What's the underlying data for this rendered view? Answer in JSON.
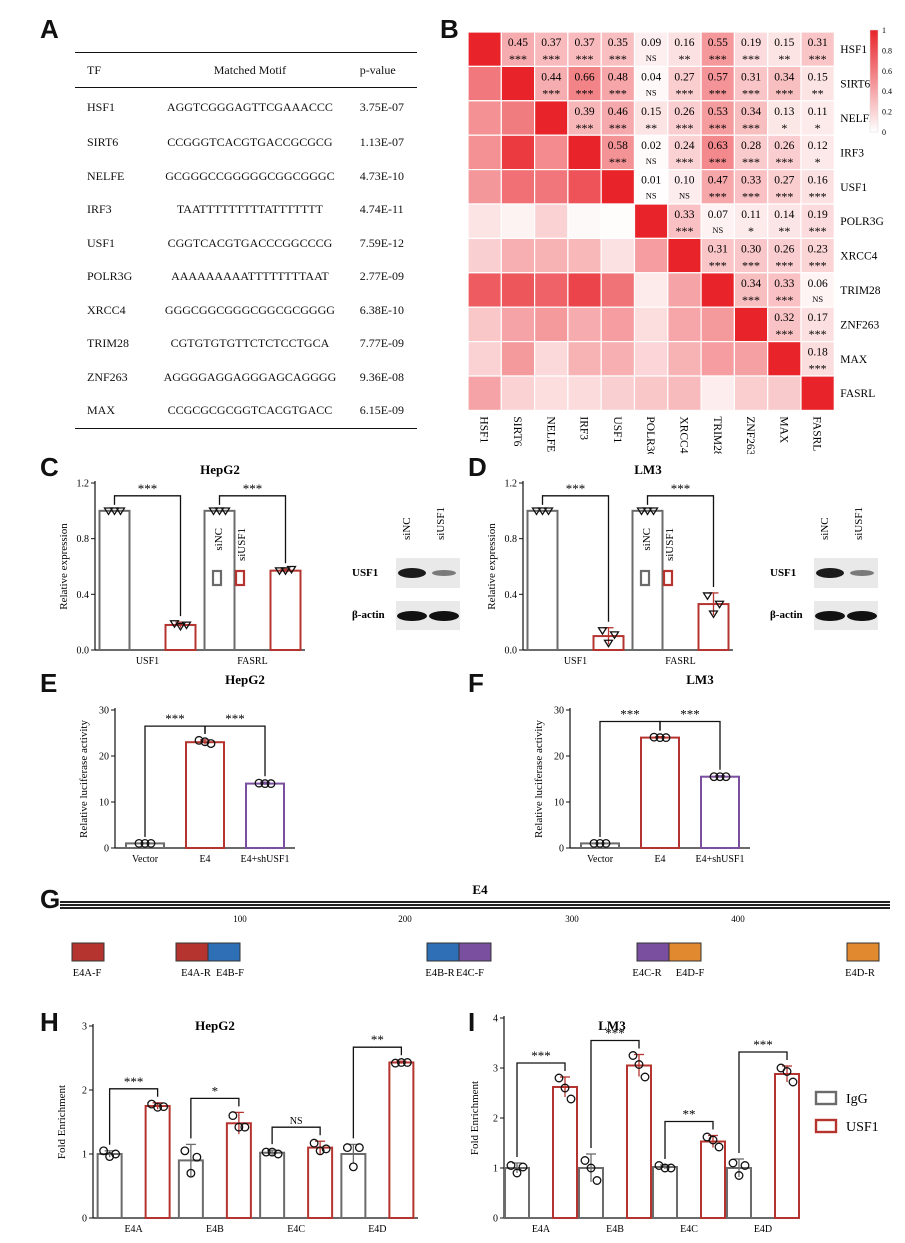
{
  "panel_labels": [
    "A",
    "B",
    "C",
    "D",
    "E",
    "F",
    "G",
    "H",
    "I"
  ],
  "motif_table": {
    "headers": [
      "TF",
      "Matched Motif",
      "p-value"
    ],
    "rows": [
      [
        "HSF1",
        "AGGTCGGGAGTTCGAAACCC",
        "3.75E-07"
      ],
      [
        "SIRT6",
        "CCGGGTCACGTGACCGCGCG",
        "1.13E-07"
      ],
      [
        "NELFE",
        "GCGGGCCGGGGGCGGCGGGC",
        "4.73E-10"
      ],
      [
        "IRF3",
        "TAATTTTTTTTTATTTTTTT",
        "4.74E-11"
      ],
      [
        "USF1",
        "CGGTCACGTGACCCGGCCCG",
        "7.59E-12"
      ],
      [
        "POLR3G",
        "AAAAAAAAATTTTTTTTAAT",
        "2.77E-09"
      ],
      [
        "XRCC4",
        "GGGCGGCGGGCGGCGCGGGG",
        "6.38E-10"
      ],
      [
        "TRIM28",
        "CGTGTGTGTTCTCTCCTGCA",
        "7.77E-09"
      ],
      [
        "ZNF263",
        "AGGGGAGGAGGGAGCAGGGG",
        "9.36E-08"
      ],
      [
        "MAX",
        "CCGCGCGCGGTCACGTGACC",
        "6.15E-09"
      ]
    ]
  },
  "heatmap": {
    "labels": [
      "HSF1",
      "SIRT6",
      "NELFE",
      "IRF3",
      "USF1",
      "POLR3G",
      "XRCC4",
      "TRIM28",
      "ZNF263",
      "MAX",
      "FASRL"
    ],
    "colorbar_ticks": [
      "1",
      "0.8",
      "0.6",
      "0.4",
      "0.2",
      "0"
    ],
    "colors": {
      "high": "#e8232a",
      "low": "#ffffff"
    },
    "upper": [
      [
        null,
        "0.45",
        "0.37",
        "0.37",
        "0.35",
        "0.09",
        "0.16",
        "0.55",
        "0.19",
        "0.15",
        "0.31"
      ],
      [
        null,
        null,
        "0.44",
        "0.66",
        "0.48",
        "0.04",
        "0.27",
        "0.57",
        "0.31",
        "0.34",
        "0.15"
      ],
      [
        null,
        null,
        null,
        "0.39",
        "0.46",
        "0.15",
        "0.26",
        "0.53",
        "0.34",
        "0.13",
        "0.11"
      ],
      [
        null,
        null,
        null,
        null,
        "0.58",
        "0.02",
        "0.24",
        "0.63",
        "0.28",
        "0.26",
        "0.12"
      ],
      [
        null,
        null,
        null,
        null,
        null,
        "0.01",
        "0.10",
        "0.47",
        "0.33",
        "0.27",
        "0.16"
      ],
      [
        null,
        null,
        null,
        null,
        null,
        null,
        "0.33",
        "0.07",
        "0.11",
        "0.14",
        "0.19"
      ],
      [
        null,
        null,
        null,
        null,
        null,
        null,
        null,
        "0.31",
        "0.30",
        "0.26",
        "0.23"
      ],
      [
        null,
        null,
        null,
        null,
        null,
        null,
        null,
        null,
        "0.34",
        "0.33",
        "0.06"
      ],
      [
        null,
        null,
        null,
        null,
        null,
        null,
        null,
        null,
        null,
        "0.32",
        "0.17"
      ],
      [
        null,
        null,
        null,
        null,
        null,
        null,
        null,
        null,
        null,
        null,
        "0.18"
      ]
    ],
    "sig": [
      [
        null,
        "***",
        "***",
        "***",
        "***",
        "NS",
        "**",
        "***",
        "***",
        "**",
        "***"
      ],
      [
        null,
        null,
        "***",
        "***",
        "***",
        "NS",
        "***",
        "***",
        "***",
        "***",
        "**"
      ],
      [
        null,
        null,
        null,
        "***",
        "***",
        "**",
        "***",
        "***",
        "***",
        "*",
        "*"
      ],
      [
        null,
        null,
        null,
        null,
        "***",
        "NS",
        "***",
        "***",
        "***",
        "***",
        "*"
      ],
      [
        null,
        null,
        null,
        null,
        null,
        "NS",
        "NS",
        "***",
        "***",
        "***",
        "***"
      ],
      [
        null,
        null,
        null,
        null,
        null,
        null,
        "***",
        "NS",
        "*",
        "**",
        "***"
      ],
      [
        null,
        null,
        null,
        null,
        null,
        null,
        null,
        "***",
        "***",
        "***",
        "***"
      ],
      [
        null,
        null,
        null,
        null,
        null,
        null,
        null,
        null,
        "***",
        "***",
        "NS"
      ],
      [
        null,
        null,
        null,
        null,
        null,
        null,
        null,
        null,
        null,
        "***",
        "***"
      ],
      [
        null,
        null,
        null,
        null,
        null,
        null,
        null,
        null,
        null,
        null,
        "***"
      ]
    ]
  },
  "chart_data": [
    {
      "id": "C",
      "type": "bar",
      "title": "HepG2",
      "ylabel": "Relative expression",
      "ylim": [
        0,
        1.2
      ],
      "yticks": [
        "0.0",
        "0.4",
        "0.8",
        "1.2"
      ],
      "categories": [
        "USF1",
        "FASRL"
      ],
      "series": [
        {
          "name": "siNC",
          "color": "#6b6b6b",
          "values": [
            1.0,
            1.0
          ],
          "sd": [
            0,
            0
          ],
          "points": [
            [
              1.0,
              1.0,
              1.0
            ],
            [
              1.0,
              1.0,
              1.0
            ]
          ]
        },
        {
          "name": "siUSF1",
          "color": "#b5342f",
          "values": [
            0.18,
            0.57
          ],
          "sd": [
            0.02,
            0.01
          ],
          "points": [
            [
              0.19,
              0.17,
              0.18
            ],
            [
              0.57,
              0.57,
              0.58
            ]
          ]
        }
      ],
      "significance": [
        "***",
        "***"
      ],
      "legend": [
        "siNC",
        "siUSF1"
      ]
    },
    {
      "id": "D",
      "type": "bar",
      "title": "LM3",
      "ylabel": "Relative expression",
      "ylim": [
        0,
        1.2
      ],
      "yticks": [
        "0.0",
        "0.4",
        "0.8",
        "1.2"
      ],
      "categories": [
        "USF1",
        "FASRL"
      ],
      "series": [
        {
          "name": "siNC",
          "color": "#6b6b6b",
          "values": [
            1.0,
            1.0
          ],
          "sd": [
            0,
            0
          ],
          "points": [
            [
              1.0,
              1.0,
              1.0
            ],
            [
              1.0,
              1.0,
              1.0
            ]
          ]
        },
        {
          "name": "siUSF1",
          "color": "#b5342f",
          "values": [
            0.1,
            0.33
          ],
          "sd": [
            0.06,
            0.08
          ],
          "points": [
            [
              0.14,
              0.05,
              0.11
            ],
            [
              0.39,
              0.26,
              0.33
            ]
          ]
        }
      ],
      "significance": [
        "***",
        "***"
      ],
      "legend": [
        "siNC",
        "siUSF1"
      ]
    },
    {
      "id": "E",
      "type": "bar",
      "title": "HepG2",
      "ylabel": "Relative luciferase activity",
      "ylim": [
        0,
        30
      ],
      "yticks": [
        "0",
        "10",
        "20",
        "30"
      ],
      "categories": [
        "Vector",
        "E4",
        "E4+shUSF1"
      ],
      "values": [
        1.0,
        23.0,
        14.0
      ],
      "sd": [
        0.1,
        0.5,
        0.3
      ],
      "colors": [
        "#6b6b6b",
        "#b5342f",
        "#7a4fa0"
      ],
      "points": [
        [
          1.0,
          1.0,
          1.0
        ],
        [
          23.4,
          23.1,
          22.7
        ],
        [
          14.1,
          14.0,
          14.0
        ]
      ],
      "significance": [
        "***",
        "***"
      ]
    },
    {
      "id": "F",
      "type": "bar",
      "title": "LM3",
      "ylabel": "Relative luciferase activity",
      "ylim": [
        0,
        30
      ],
      "yticks": [
        "0",
        "10",
        "20",
        "30"
      ],
      "categories": [
        "Vector",
        "E4",
        "E4+shUSF1"
      ],
      "values": [
        1.0,
        24.0,
        15.5
      ],
      "sd": [
        0.1,
        0.2,
        0.2
      ],
      "colors": [
        "#6b6b6b",
        "#b5342f",
        "#7a4fa0"
      ],
      "points": [
        [
          1.0,
          1.0,
          1.0
        ],
        [
          24.1,
          24.0,
          24.0
        ],
        [
          15.5,
          15.5,
          15.5
        ]
      ],
      "significance": [
        "***",
        "***"
      ]
    },
    {
      "id": "H",
      "type": "bar",
      "title": "HepG2",
      "ylabel": "Fold Enrichment",
      "ylim": [
        0,
        3
      ],
      "yticks": [
        "0",
        "1",
        "2",
        "3"
      ],
      "categories": [
        "E4A",
        "E4B",
        "E4C",
        "E4D"
      ],
      "series": [
        {
          "name": "IgG",
          "color": "#6b6b6b",
          "values": [
            1.0,
            0.9,
            1.02,
            1.0
          ],
          "sd": [
            0.05,
            0.25,
            0.04,
            0.15
          ],
          "points": [
            [
              1.05,
              0.96,
              1.0
            ],
            [
              1.05,
              0.7,
              0.95
            ],
            [
              1.03,
              1.03,
              1.0
            ],
            [
              1.1,
              0.8,
              1.1
            ]
          ]
        },
        {
          "name": "USF1",
          "color": "#b5342f",
          "values": [
            1.75,
            1.48,
            1.1,
            2.43
          ],
          "sd": [
            0.05,
            0.17,
            0.1,
            0.02
          ],
          "points": [
            [
              1.78,
              1.73,
              1.74
            ],
            [
              1.6,
              1.42,
              1.42
            ],
            [
              1.17,
              1.05,
              1.08
            ],
            [
              2.42,
              2.43,
              2.43
            ]
          ]
        }
      ],
      "significance": [
        "***",
        "*",
        "NS",
        "**"
      ]
    },
    {
      "id": "I",
      "type": "bar",
      "title": "LM3",
      "ylabel": "Fold Enrichment",
      "ylim": [
        0,
        4
      ],
      "yticks": [
        "0",
        "1",
        "2",
        "3",
        "4"
      ],
      "categories": [
        "E4A",
        "E4B",
        "E4C",
        "E4D"
      ],
      "series": [
        {
          "name": "IgG",
          "color": "#6b6b6b",
          "values": [
            1.0,
            1.0,
            1.02,
            1.0
          ],
          "sd": [
            0.1,
            0.28,
            0.04,
            0.18
          ],
          "points": [
            [
              1.05,
              0.9,
              1.02
            ],
            [
              1.15,
              1.0,
              0.75
            ],
            [
              1.05,
              1.0,
              1.0
            ],
            [
              1.1,
              0.85,
              1.05
            ]
          ]
        },
        {
          "name": "USF1",
          "color": "#b5342f",
          "values": [
            2.62,
            3.05,
            1.53,
            2.88
          ],
          "sd": [
            0.2,
            0.22,
            0.12,
            0.16
          ],
          "points": [
            [
              2.8,
              2.6,
              2.38
            ],
            [
              3.25,
              3.07,
              2.82
            ],
            [
              1.62,
              1.56,
              1.42
            ],
            [
              3.0,
              2.93,
              2.72
            ]
          ]
        }
      ],
      "significance": [
        "***",
        "***",
        "**",
        "***"
      ],
      "legend": [
        "IgG",
        "USF1"
      ]
    }
  ],
  "western_blots": {
    "lanes": [
      "siNC",
      "siUSF1"
    ],
    "bands": [
      "USF1",
      "β-actin"
    ]
  },
  "e4_map": {
    "title": "E4",
    "ticks": [
      "100",
      "200",
      "300",
      "400"
    ],
    "primers": [
      {
        "label": "E4A-F",
        "color": "#b5342f"
      },
      {
        "label": "E4A-R",
        "color": "#b5342f"
      },
      {
        "label": "E4B-F",
        "color": "#2f6fb5"
      },
      {
        "label": "E4B-R",
        "color": "#2f6fb5"
      },
      {
        "label": "E4C-F",
        "color": "#7a4fa0"
      },
      {
        "label": "E4C-R",
        "color": "#7a4fa0"
      },
      {
        "label": "E4D-F",
        "color": "#e0892e"
      },
      {
        "label": "E4D-R",
        "color": "#e0892e"
      }
    ]
  }
}
